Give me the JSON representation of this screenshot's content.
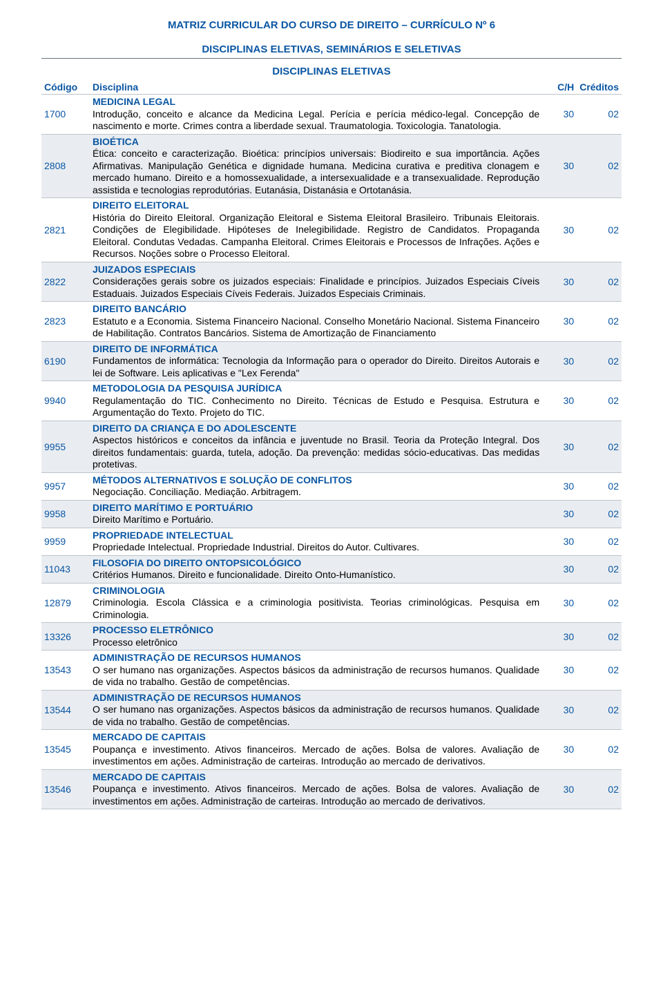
{
  "colors": {
    "primary": "#0a56a3",
    "text": "#000000",
    "alt_row_bg": "#e9edf1",
    "divider": "#687279",
    "row_border": "#bcc3c9",
    "background": "#ffffff"
  },
  "typography": {
    "font_family": "Arial",
    "title_fontsize_pt": 11,
    "body_fontsize_pt": 10
  },
  "titles": {
    "main": "MATRIZ CURRICULAR DO CURSO DE DIREITO – CURRÍCULO Nº 6",
    "sub": "DISCIPLINAS ELETIVAS, SEMINÁRIOS E SELETIVAS",
    "section": "DISCIPLINAS ELETIVAS"
  },
  "columns": {
    "codigo": "Código",
    "disciplina": "Disciplina",
    "ch": "C/H",
    "creditos": "Créditos"
  },
  "rows": [
    {
      "code": "1700",
      "name": "MEDICINA LEGAL",
      "desc": "Introdução, conceito e alcance da Medicina Legal. Perícia e perícia médico-legal. Concepção de nascimento e morte. Crimes contra a liberdade sexual. Traumatologia. Toxicologia. Tanatologia.",
      "ch": "30",
      "cred": "02",
      "alt": false
    },
    {
      "code": "2808",
      "name": "BIOÉTICA",
      "desc": "Ética: conceito e caracterização. Bioética: princípios universais: Biodireito e sua importância. Ações Afirmativas. Manipulação Genética e dignidade humana. Medicina curativa e preditiva clonagem e mercado humano. Direito e a homossexualidade, a intersexualidade e a transexualidade. Reprodução assistida e tecnologias reprodutórias. Eutanásia, Distanásia e Ortotanásia.",
      "ch": "30",
      "cred": "02",
      "alt": true
    },
    {
      "code": "2821",
      "name": "DIREITO ELEITORAL",
      "desc": "História do Direito Eleitoral. Organização Eleitoral e Sistema Eleitoral Brasileiro. Tribunais Eleitorais. Condições de Elegibilidade. Hipóteses de Inelegibilidade. Registro de Candidatos. Propaganda Eleitoral. Condutas Vedadas. Campanha Eleitoral. Crimes Eleitorais e Processos de Infrações. Ações e Recursos. Noções sobre o Processo Eleitoral.",
      "ch": "30",
      "cred": "02",
      "alt": false
    },
    {
      "code": "2822",
      "name": "JUIZADOS ESPECIAIS",
      "desc": "Considerações gerais sobre os juizados especiais: Finalidade e princípios. Juizados Especiais Cíveis Estaduais. Juizados Especiais Cíveis Federais. Juizados Especiais Criminais.",
      "ch": "30",
      "cred": "02",
      "alt": true
    },
    {
      "code": "2823",
      "name": "DIREITO BANCÁRIO",
      "desc": "Estatuto e a Economia. Sistema Financeiro Nacional. Conselho Monetário Nacional. Sistema Financeiro de Habilitação. Contratos Bancários. Sistema de Amortização de Financiamento",
      "ch": "30",
      "cred": "02",
      "alt": false
    },
    {
      "code": "6190",
      "name": "DIREITO DE INFORMÁTICA",
      "desc": "Fundamentos de informática: Tecnologia da Informação para o operador do Direito. Direitos Autorais e lei de Software. Leis aplicativas e \"Lex Ferenda\"",
      "ch": "30",
      "cred": "02",
      "alt": true
    },
    {
      "code": "9940",
      "name": "METODOLOGIA DA PESQUISA JURÍDICA",
      "desc": "Regulamentação do TIC. Conhecimento no Direito. Técnicas de Estudo e Pesquisa. Estrutura e Argumentação do Texto. Projeto do TIC.",
      "ch": "30",
      "cred": "02",
      "alt": false
    },
    {
      "code": "9955",
      "name": "DIREITO DA CRIANÇA E DO ADOLESCENTE",
      "desc": "Aspectos históricos e conceitos da infância e juventude no Brasil. Teoria da Proteção Integral. Dos direitos fundamentais: guarda, tutela, adoção. Da prevenção: medidas sócio-educativas. Das medidas protetivas.",
      "ch": "30",
      "cred": "02",
      "alt": true
    },
    {
      "code": "9957",
      "name": "MÉTODOS ALTERNATIVOS E SOLUÇÃO DE CONFLITOS",
      "desc": "Negociação. Conciliação. Mediação. Arbitragem.",
      "ch": "30",
      "cred": "02",
      "alt": false
    },
    {
      "code": "9958",
      "name": "DIREITO MARÍTIMO E PORTUÁRIO",
      "desc": "Direito Marítimo e Portuário.",
      "ch": "30",
      "cred": "02",
      "alt": true
    },
    {
      "code": "9959",
      "name": "PROPRIEDADE INTELECTUAL",
      "desc": "Propriedade Intelectual. Propriedade Industrial. Direitos do Autor. Cultivares.",
      "ch": "30",
      "cred": "02",
      "alt": false
    },
    {
      "code": "11043",
      "name": "FILOSOFIA DO DIREITO ONTOPSICOLÓGICO",
      "desc": "Critérios Humanos. Direito e funcionalidade. Direito Onto-Humanístico.",
      "ch": "30",
      "cred": "02",
      "alt": true
    },
    {
      "code": "12879",
      "name": "CRIMINOLOGIA",
      "desc": "Criminologia. Escola Clássica e a criminologia positivista. Teorias criminológicas. Pesquisa em Criminologia.",
      "ch": "30",
      "cred": "02",
      "alt": false
    },
    {
      "code": "13326",
      "name": "PROCESSO ELETRÔNICO",
      "desc": "Processo eletrônico",
      "ch": "30",
      "cred": "02",
      "alt": true
    },
    {
      "code": "13543",
      "name": "ADMINISTRAÇÃO DE RECURSOS HUMANOS",
      "desc": "O ser humano nas organizações. Aspectos básicos da administração de recursos humanos. Qualidade de vida no trabalho. Gestão de competências.",
      "ch": "30",
      "cred": "02",
      "alt": false
    },
    {
      "code": "13544",
      "name": "ADMINISTRAÇÃO DE RECURSOS HUMANOS",
      "desc": "O ser humano nas organizações. Aspectos básicos da administração de recursos humanos. Qualidade de vida no trabalho. Gestão de competências.",
      "ch": "30",
      "cred": "02",
      "alt": true
    },
    {
      "code": "13545",
      "name": "MERCADO DE CAPITAIS",
      "desc": "Poupança e investimento. Ativos financeiros. Mercado de ações. Bolsa de valores. Avaliação de investimentos em ações. Administração de carteiras. Introdução ao mercado de derivativos.",
      "ch": "30",
      "cred": "02",
      "alt": false
    },
    {
      "code": "13546",
      "name": "MERCADO DE CAPITAIS",
      "desc": "Poupança e investimento. Ativos financeiros. Mercado de ações. Bolsa de valores. Avaliação de investimentos em ações. Administração de carteiras. Introdução ao mercado de derivativos.",
      "ch": "30",
      "cred": "02",
      "alt": true
    }
  ]
}
